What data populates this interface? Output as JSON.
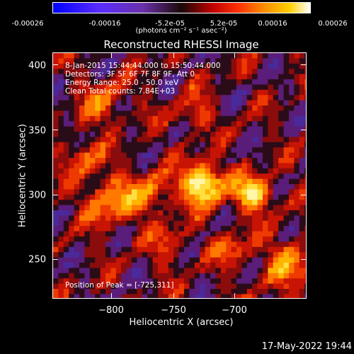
{
  "colorbar": {
    "ticks": [
      "-0.00026",
      "-0.00016",
      "-5.2e-05",
      "5.2e-05",
      "0.00016",
      "0.00026"
    ],
    "unit": "(photons cm⁻² s⁻¹ asec⁻²)"
  },
  "plot": {
    "title": "Reconstructed RHESSI Image",
    "xlabel": "Heliocentric X (arcsec)",
    "ylabel": "Heliocentric Y (arcsec)",
    "xticks": [
      "−800",
      "−750",
      "−700"
    ],
    "yticks": [
      "400",
      "350",
      "300",
      "250"
    ],
    "annotations": {
      "time_range": "8-Jan-2015 15:44:44.000 to 15:50:44.000",
      "detectors": "Detectors: 3F 5F 6F 7F 8F 9F, Att 0",
      "energy": "Energy Range: 25.0 - 50.0 keV",
      "clean": "Clean     Total counts: 7.84E+03",
      "peak": "Position of Peak = [-725,311]"
    }
  },
  "footer": {
    "date": "17-May-2022 19:44"
  }
}
